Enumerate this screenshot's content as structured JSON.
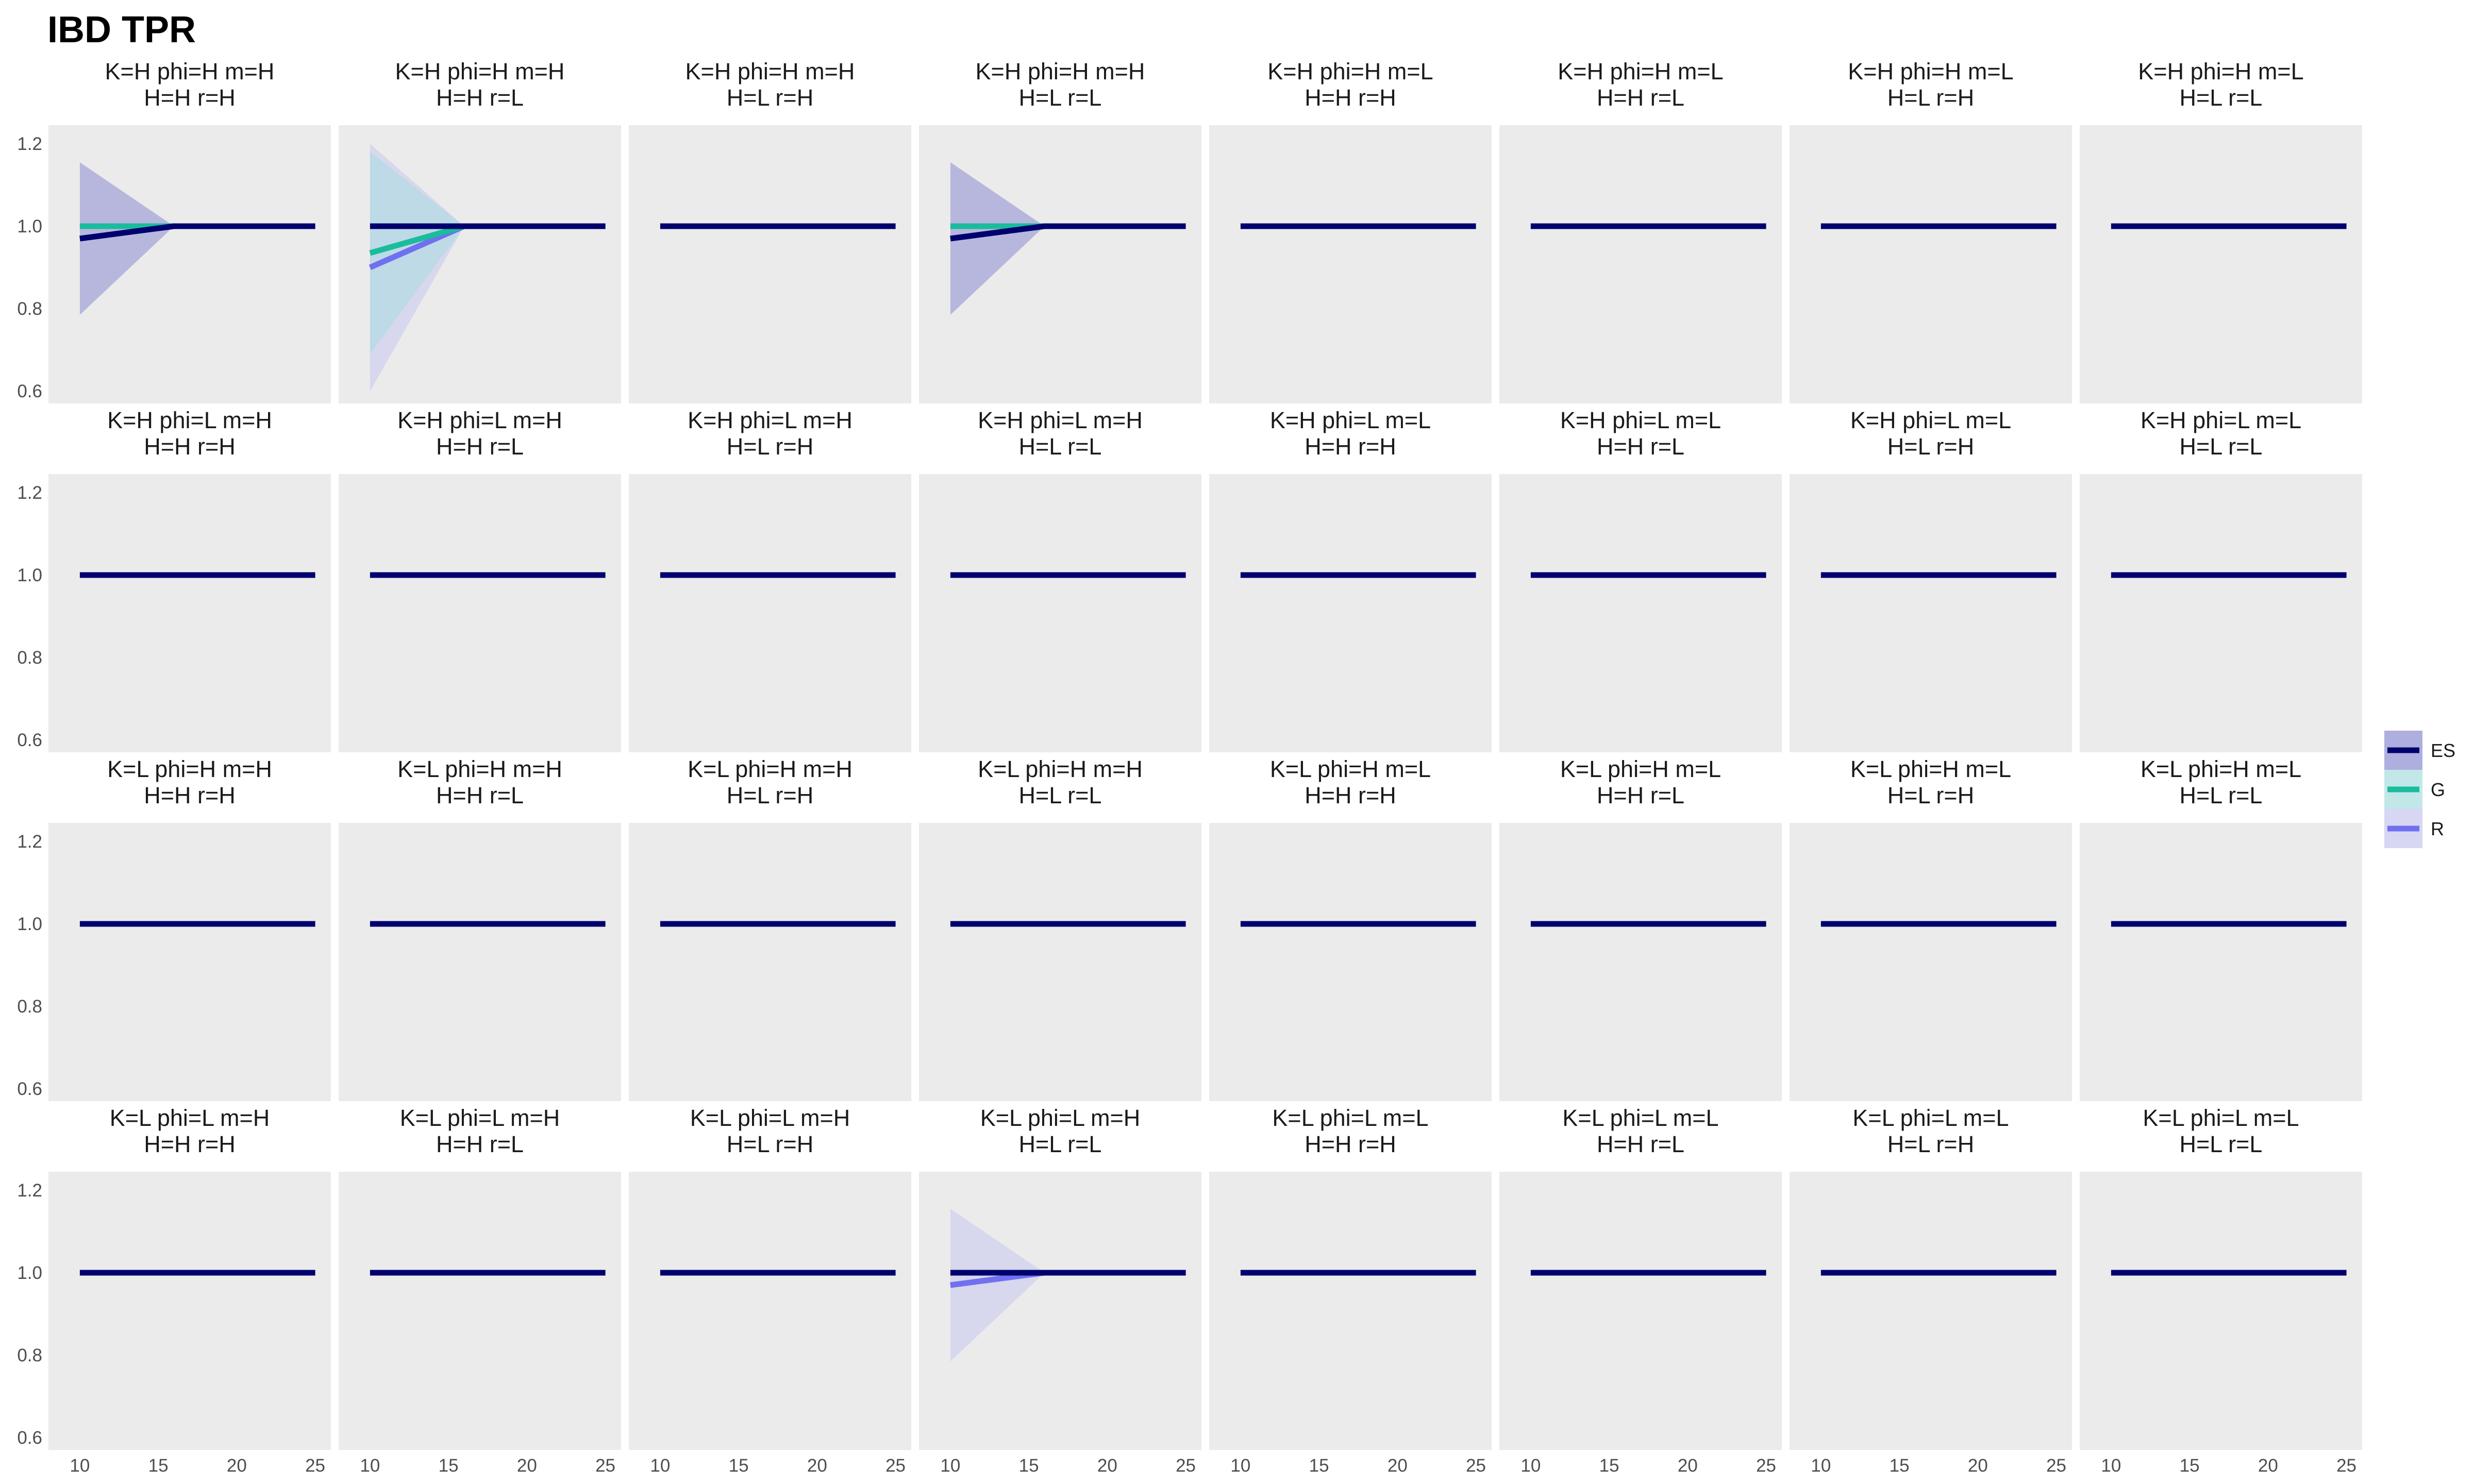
{
  "chart_data": {
    "type": "line",
    "title": "IBD TPR",
    "xlabel": "",
    "ylabel": "",
    "xlim": [
      8,
      26
    ],
    "ylim": [
      0.57,
      1.245
    ],
    "x_ticks": [
      10,
      15,
      20,
      25
    ],
    "y_ticks": [
      0.6,
      0.8,
      1.0,
      1.2
    ],
    "x_tick_labels": [
      "10",
      "15",
      "20",
      "25"
    ],
    "y_tick_labels": [
      "0.6",
      "0.8",
      "1.0",
      "1.2"
    ],
    "grid": true,
    "legend_position": "right",
    "legend": [
      {
        "name": "ES",
        "color": "#00006e",
        "ribbon": "#8c8cd2"
      },
      {
        "name": "G",
        "color": "#1abc9c",
        "ribbon": "#a8dde0"
      },
      {
        "name": "R",
        "color": "#7070f0",
        "ribbon": "#c6c6ee"
      }
    ],
    "x": [
      10,
      16,
      25
    ],
    "panels": [
      {
        "strip": [
          "K=H phi=H m=H",
          "H=H r=H"
        ],
        "series": [
          {
            "name": "G",
            "values": [
              1.0,
              1.0,
              1.0
            ],
            "lower": [
              1.0,
              1.0,
              1.0
            ],
            "upper": [
              1.0,
              1.0,
              1.0
            ]
          },
          {
            "name": "ES",
            "values": [
              0.97,
              1.0,
              1.0
            ],
            "lower": [
              0.785,
              1.0,
              1.0
            ],
            "upper": [
              1.155,
              1.0,
              1.0
            ]
          }
        ]
      },
      {
        "strip": [
          "K=H phi=H m=H",
          "H=H r=L"
        ],
        "series": [
          {
            "name": "R",
            "values": [
              0.9,
              1.0,
              1.0
            ],
            "lower": [
              0.6,
              1.0,
              1.0
            ],
            "upper": [
              1.2,
              1.0,
              1.0
            ]
          },
          {
            "name": "G",
            "values": [
              0.935,
              1.0,
              1.0
            ],
            "lower": [
              0.69,
              1.0,
              1.0
            ],
            "upper": [
              1.18,
              1.0,
              1.0
            ]
          },
          {
            "name": "ES",
            "values": [
              1.0,
              1.0,
              1.0
            ],
            "lower": [
              1.0,
              1.0,
              1.0
            ],
            "upper": [
              1.0,
              1.0,
              1.0
            ]
          }
        ]
      },
      {
        "strip": [
          "K=H phi=H m=H",
          "H=L r=H"
        ],
        "series": [
          {
            "name": "ES",
            "values": [
              1.0,
              1.0,
              1.0
            ]
          }
        ]
      },
      {
        "strip": [
          "K=H phi=H m=H",
          "H=L r=L"
        ],
        "series": [
          {
            "name": "G",
            "values": [
              1.0,
              1.0,
              1.0
            ],
            "lower": [
              1.0,
              1.0,
              1.0
            ],
            "upper": [
              1.0,
              1.0,
              1.0
            ]
          },
          {
            "name": "ES",
            "values": [
              0.97,
              1.0,
              1.0
            ],
            "lower": [
              0.785,
              1.0,
              1.0
            ],
            "upper": [
              1.155,
              1.0,
              1.0
            ]
          }
        ]
      },
      {
        "strip": [
          "K=H phi=H m=L",
          "H=H r=H"
        ],
        "series": [
          {
            "name": "ES",
            "values": [
              1.0,
              1.0,
              1.0
            ]
          }
        ]
      },
      {
        "strip": [
          "K=H phi=H m=L",
          "H=H r=L"
        ],
        "series": [
          {
            "name": "ES",
            "values": [
              1.0,
              1.0,
              1.0
            ]
          }
        ]
      },
      {
        "strip": [
          "K=H phi=H m=L",
          "H=L r=H"
        ],
        "series": [
          {
            "name": "ES",
            "values": [
              1.0,
              1.0,
              1.0
            ]
          }
        ]
      },
      {
        "strip": [
          "K=H phi=H m=L",
          "H=L r=L"
        ],
        "series": [
          {
            "name": "ES",
            "values": [
              1.0,
              1.0,
              1.0
            ]
          }
        ]
      },
      {
        "strip": [
          "K=H phi=L m=H",
          "H=H r=H"
        ],
        "series": [
          {
            "name": "ES",
            "values": [
              1.0,
              1.0,
              1.0
            ]
          }
        ]
      },
      {
        "strip": [
          "K=H phi=L m=H",
          "H=H r=L"
        ],
        "series": [
          {
            "name": "ES",
            "values": [
              1.0,
              1.0,
              1.0
            ]
          }
        ]
      },
      {
        "strip": [
          "K=H phi=L m=H",
          "H=L r=H"
        ],
        "series": [
          {
            "name": "ES",
            "values": [
              1.0,
              1.0,
              1.0
            ]
          }
        ]
      },
      {
        "strip": [
          "K=H phi=L m=H",
          "H=L r=L"
        ],
        "series": [
          {
            "name": "ES",
            "values": [
              1.0,
              1.0,
              1.0
            ]
          }
        ]
      },
      {
        "strip": [
          "K=H phi=L m=L",
          "H=H r=H"
        ],
        "series": [
          {
            "name": "ES",
            "values": [
              1.0,
              1.0,
              1.0
            ]
          }
        ]
      },
      {
        "strip": [
          "K=H phi=L m=L",
          "H=H r=L"
        ],
        "series": [
          {
            "name": "ES",
            "values": [
              1.0,
              1.0,
              1.0
            ]
          }
        ]
      },
      {
        "strip": [
          "K=H phi=L m=L",
          "H=L r=H"
        ],
        "series": [
          {
            "name": "ES",
            "values": [
              1.0,
              1.0,
              1.0
            ]
          }
        ]
      },
      {
        "strip": [
          "K=H phi=L m=L",
          "H=L r=L"
        ],
        "series": [
          {
            "name": "ES",
            "values": [
              1.0,
              1.0,
              1.0
            ]
          }
        ]
      },
      {
        "strip": [
          "K=L phi=H m=H",
          "H=H r=H"
        ],
        "series": [
          {
            "name": "ES",
            "values": [
              1.0,
              1.0,
              1.0
            ]
          }
        ]
      },
      {
        "strip": [
          "K=L phi=H m=H",
          "H=H r=L"
        ],
        "series": [
          {
            "name": "ES",
            "values": [
              1.0,
              1.0,
              1.0
            ]
          }
        ]
      },
      {
        "strip": [
          "K=L phi=H m=H",
          "H=L r=H"
        ],
        "series": [
          {
            "name": "ES",
            "values": [
              1.0,
              1.0,
              1.0
            ]
          }
        ]
      },
      {
        "strip": [
          "K=L phi=H m=H",
          "H=L r=L"
        ],
        "series": [
          {
            "name": "ES",
            "values": [
              1.0,
              1.0,
              1.0
            ]
          }
        ]
      },
      {
        "strip": [
          "K=L phi=H m=L",
          "H=H r=H"
        ],
        "series": [
          {
            "name": "ES",
            "values": [
              1.0,
              1.0,
              1.0
            ]
          }
        ]
      },
      {
        "strip": [
          "K=L phi=H m=L",
          "H=H r=L"
        ],
        "series": [
          {
            "name": "ES",
            "values": [
              1.0,
              1.0,
              1.0
            ]
          }
        ]
      },
      {
        "strip": [
          "K=L phi=H m=L",
          "H=L r=H"
        ],
        "series": [
          {
            "name": "ES",
            "values": [
              1.0,
              1.0,
              1.0
            ]
          }
        ]
      },
      {
        "strip": [
          "K=L phi=H m=L",
          "H=L r=L"
        ],
        "series": [
          {
            "name": "ES",
            "values": [
              1.0,
              1.0,
              1.0
            ]
          }
        ]
      },
      {
        "strip": [
          "K=L phi=L m=H",
          "H=H r=H"
        ],
        "series": [
          {
            "name": "ES",
            "values": [
              1.0,
              1.0,
              1.0
            ]
          }
        ]
      },
      {
        "strip": [
          "K=L phi=L m=H",
          "H=H r=L"
        ],
        "series": [
          {
            "name": "ES",
            "values": [
              1.0,
              1.0,
              1.0
            ]
          }
        ]
      },
      {
        "strip": [
          "K=L phi=L m=H",
          "H=L r=H"
        ],
        "series": [
          {
            "name": "ES",
            "values": [
              1.0,
              1.0,
              1.0
            ]
          }
        ]
      },
      {
        "strip": [
          "K=L phi=L m=H",
          "H=L r=L"
        ],
        "series": [
          {
            "name": "R",
            "values": [
              0.97,
              1.0,
              1.0
            ],
            "lower": [
              0.785,
              1.0,
              1.0
            ],
            "upper": [
              1.155,
              1.0,
              1.0
            ]
          },
          {
            "name": "ES",
            "values": [
              1.0,
              1.0,
              1.0
            ]
          }
        ]
      },
      {
        "strip": [
          "K=L phi=L m=L",
          "H=H r=H"
        ],
        "series": [
          {
            "name": "ES",
            "values": [
              1.0,
              1.0,
              1.0
            ]
          }
        ]
      },
      {
        "strip": [
          "K=L phi=L m=L",
          "H=H r=L"
        ],
        "series": [
          {
            "name": "ES",
            "values": [
              1.0,
              1.0,
              1.0
            ]
          }
        ]
      },
      {
        "strip": [
          "K=L phi=L m=L",
          "H=L r=H"
        ],
        "series": [
          {
            "name": "ES",
            "values": [
              1.0,
              1.0,
              1.0
            ]
          }
        ]
      },
      {
        "strip": [
          "K=L phi=L m=L",
          "H=L r=L"
        ],
        "series": [
          {
            "name": "ES",
            "values": [
              1.0,
              1.0,
              1.0
            ]
          }
        ]
      }
    ]
  }
}
